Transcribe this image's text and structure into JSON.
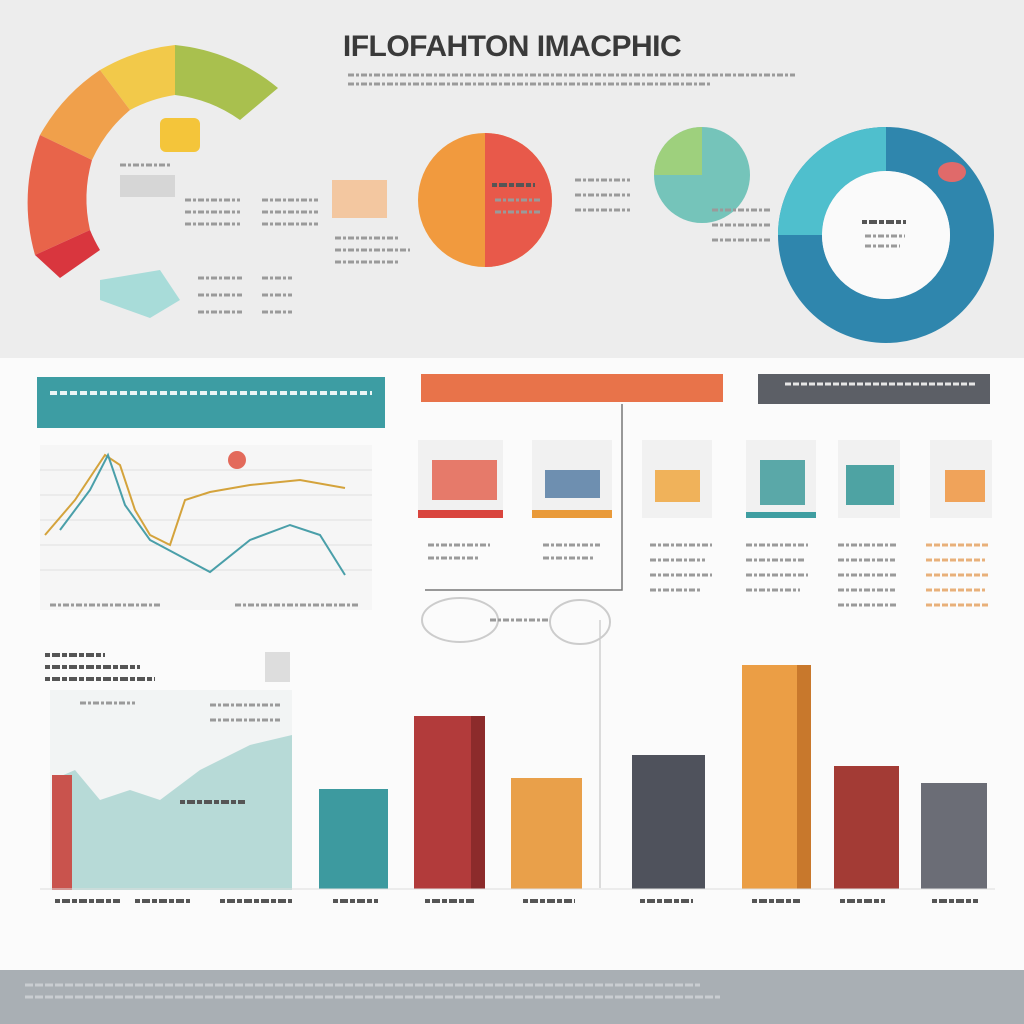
{
  "header": {
    "title": "IFLOFAHTON IMACPHIC"
  }
}
